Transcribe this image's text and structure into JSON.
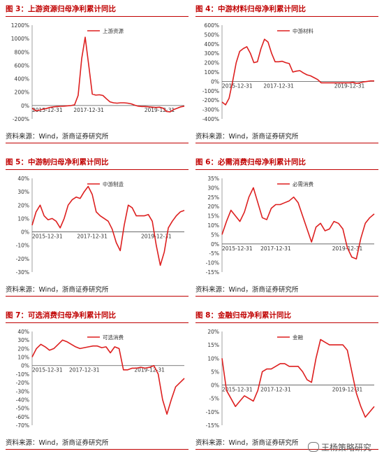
{
  "accent_color": "#c00000",
  "line_color": "#dd1f1f",
  "panels": [
    {
      "title": "图 3：上游资源归母净利累计同比",
      "source": "资料来源：Wind，浙商证券研究所",
      "chart_data": {
        "type": "line",
        "series": [
          {
            "name": "上游资源",
            "values": [
              -40,
              -80,
              -70,
              -55,
              -45,
              -30,
              -20,
              -15,
              -12,
              -10,
              -5,
              0,
              10,
              150,
              700,
              1020,
              600,
              170,
              155,
              160,
              150,
              100,
              55,
              40,
              35,
              40,
              40,
              35,
              25,
              5,
              -10,
              -15,
              -15,
              -20,
              -25,
              -30,
              -25,
              -40,
              -90,
              -95,
              -60,
              -40,
              -20,
              -10
            ]
          }
        ],
        "ylim": [
          -200,
          1200
        ],
        "yticks": [
          "1200%",
          "1000%",
          "800%",
          "600%",
          "400%",
          "200%",
          "0%",
          "-200%"
        ],
        "xticks": [
          "2015-12-31",
          "2017-12-31",
          "2019-12-31"
        ],
        "xtick_index": [
          0,
          16,
          36
        ],
        "legend": "top-center"
      }
    },
    {
      "title": "图 4：中游材料归母净利累计同比",
      "source": "资料来源：Wind，浙商证券研究所",
      "chart_data": {
        "type": "line",
        "series": [
          {
            "name": "中游材料",
            "values": [
              -220,
              -250,
              -180,
              0,
              200,
              320,
              350,
              370,
              300,
              200,
              210,
              350,
              450,
              420,
              300,
              210,
              210,
              215,
              200,
              190,
              100,
              110,
              115,
              90,
              70,
              60,
              40,
              20,
              -15,
              -15,
              -15,
              -15,
              -15,
              -15,
              -15,
              -15,
              -15,
              -10,
              -20,
              -15,
              -5,
              0,
              5,
              5
            ]
          }
        ],
        "ylim": [
          -400,
          600
        ],
        "yticks": [
          "600%",
          "500%",
          "400%",
          "300%",
          "200%",
          "100%",
          "0%",
          "-100%",
          "-200%",
          "-300%",
          "-400%"
        ],
        "xticks": [
          "2015-12-31",
          "2017-12-31",
          "2019-12-31"
        ],
        "xtick_index": [
          0,
          16,
          36
        ],
        "legend": "top-center"
      }
    },
    {
      "title": "图 5：中游制归母净利累计同比",
      "source": "资料来源：Wind，浙商证券研究所",
      "chart_data": {
        "type": "line",
        "series": [
          {
            "name": "中游制造",
            "values": [
              5,
              15,
              20,
              12,
              9,
              10,
              8,
              3,
              10,
              20,
              24,
              26,
              25,
              30,
              34,
              28,
              15,
              12,
              10,
              8,
              2,
              -8,
              -14,
              5,
              20,
              18,
              12,
              12,
              12,
              13,
              8,
              -10,
              -25,
              -15,
              3,
              8,
              12,
              15,
              16
            ]
          }
        ],
        "ylim": [
          -30,
          40
        ],
        "yticks": [
          "40%",
          "30%",
          "20%",
          "10%",
          "0%",
          "-10%",
          "-20%",
          "-30%"
        ],
        "xticks": [
          "2015-12-31",
          "2017-12-31",
          "2019-12-31"
        ],
        "xtick_index": [
          0,
          15,
          31
        ],
        "legend": "top-center"
      }
    },
    {
      "title": "图 6：必需消费归母净利累计同比",
      "source": "资料来源：Wind，浙商证券研究所",
      "chart_data": {
        "type": "line",
        "series": [
          {
            "name": "必需消费",
            "values": [
              5,
              12,
              18,
              15,
              12,
              17,
              25,
              30,
              22,
              14,
              13,
              19,
              21,
              21,
              22,
              23,
              25,
              22,
              15,
              8,
              1,
              9,
              11,
              7,
              8,
              12,
              11,
              8,
              -2,
              -7,
              -8,
              3,
              11,
              14,
              16
            ]
          }
        ],
        "ylim": [
          -15,
          35
        ],
        "yticks": [
          "35%",
          "30%",
          "25%",
          "20%",
          "15%",
          "10%",
          "5%",
          "0%",
          "-5%",
          "-10%",
          "-15%"
        ],
        "xticks": [
          "2015-12-31",
          "2017-12-31",
          "2019-12-31"
        ],
        "xtick_index": [
          0,
          12,
          28
        ],
        "legend": "top-center"
      }
    },
    {
      "title": "图 7：可选消费归母净利累计同比",
      "source": "资料来源：Wind，浙商证券研究所",
      "chart_data": {
        "type": "line",
        "series": [
          {
            "name": "可选消费",
            "values": [
              10,
              20,
              25,
              22,
              18,
              20,
              25,
              30,
              28,
              25,
              22,
              20,
              21,
              22,
              23,
              23,
              21,
              22,
              15,
              22,
              20,
              -5,
              -5,
              -3,
              -3,
              -2,
              -3,
              -2,
              0,
              -10,
              -40,
              -57,
              -40,
              -25,
              -20,
              -15
            ]
          }
        ],
        "ylim": [
          -70,
          40
        ],
        "yticks": [
          "40%",
          "30%",
          "20%",
          "10%",
          "0%",
          "-10%",
          "-20%",
          "-30%",
          "-40%",
          "-50%",
          "-60%",
          "-70%"
        ],
        "xticks": [
          "2015-12-31",
          "2017-12-31",
          "2019-12-31"
        ],
        "xtick_index": [
          0,
          12,
          27
        ],
        "legend": "top-center"
      }
    },
    {
      "title": "图 8：金融归母净利累计同比",
      "source": "资料来源：Wind，浙商证券研究所",
      "chart_data": {
        "type": "line",
        "series": [
          {
            "name": "金融",
            "values": [
              10,
              -2,
              -5,
              -8,
              -6,
              -4,
              -5,
              -6,
              -2,
              5,
              6,
              6,
              7,
              8,
              8,
              7,
              7,
              7,
              5,
              2,
              1,
              10,
              17,
              16,
              15,
              15,
              15,
              15,
              13,
              5,
              -3,
              -8,
              -12,
              -10,
              -8
            ]
          }
        ],
        "ylim": [
          -15,
          20
        ],
        "yticks": [
          "20%",
          "15%",
          "10%",
          "5%",
          "0%",
          "-5%",
          "-10%",
          "-15%"
        ],
        "xticks": [
          "2015-12-31",
          "2017-12-31",
          "2019-12-31"
        ],
        "xtick_index": [
          0,
          12,
          28
        ],
        "legend": "top-center"
      }
    }
  ],
  "watermark": "王杨策略研究",
  "watermark_icon": "wechat-icon"
}
